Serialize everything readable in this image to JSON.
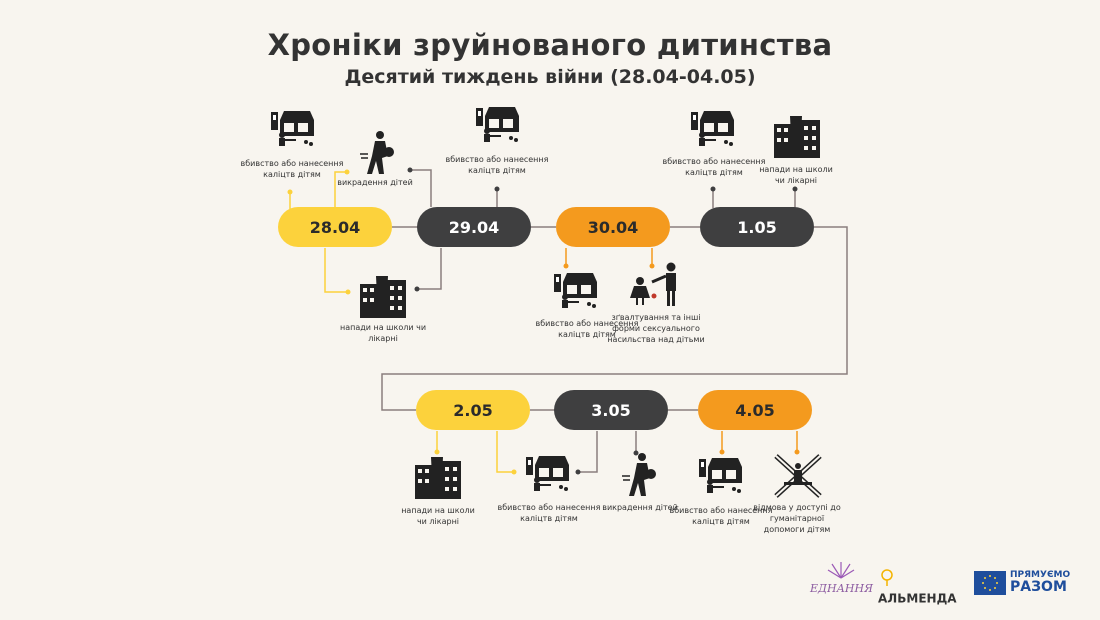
{
  "title": "Хроніки зруйнованого дитинства",
  "subtitle": "Десятий тиждень війни (28.04-04.05)",
  "dates": [
    "28.04",
    "29.04",
    "30.04",
    "1.05",
    "2.05",
    "3.05",
    "4.05"
  ],
  "labels": {
    "killing": "вбивство або нанесення каліцтв дітям",
    "abduction": "викрадення дітей",
    "attacks": "напади на школи чи лікарні",
    "sexual": "зґвалтування та інші форми сексуального насильства над дітьми",
    "denial": "відмова у доступі до гуманітарної допомоги дітям"
  },
  "colors": {
    "yellow": "#fcd23c",
    "dark": "#3f3f40",
    "orange": "#f49a1e",
    "line": "#8a7e7e",
    "background": "#f8f5ef"
  },
  "logos": {
    "ednannia": "ЕДНАННЯ",
    "almenda": "АЛЬМЕНДА",
    "eu_line1": "ПРЯМУЄМО",
    "eu_line2": "РАЗОМ"
  }
}
